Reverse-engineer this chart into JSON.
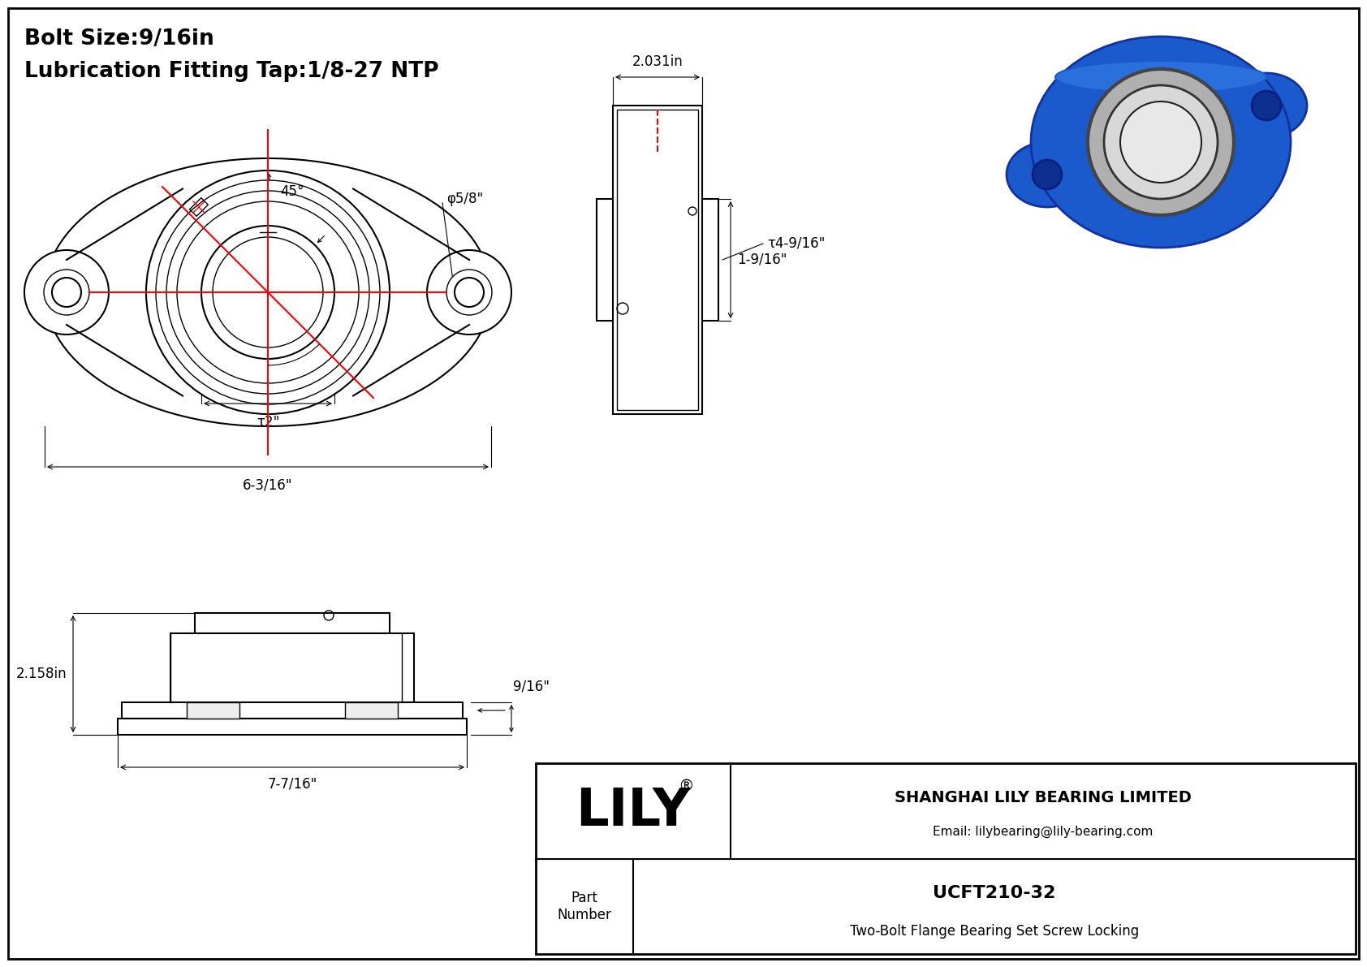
{
  "bg_color": "#ffffff",
  "line_color": "#000000",
  "red_color": "#ff0000",
  "gray_color": "#888888",
  "title_line1": "Bolt Size:9/16in",
  "title_line2": "Lubrication Fitting Tap:1/8-27 NTP",
  "header_company": "SHANGHAI LILY BEARING LIMITED",
  "header_email": "Email: lilybearing@lily-bearing.com",
  "part_label": "Part\nNumber",
  "part_number": "UCFT210-32",
  "part_desc": "Two-Bolt Flange Bearing Set Screw Locking",
  "dim_bolt_hole": "φ5/8\"",
  "dim_bore": "τ2\"",
  "dim_width": "6-3/16\"",
  "dim_od": "τ4-9/16\"",
  "dim_length": "2.031in",
  "dim_height": "1-9/16\"",
  "dim_45": "45°",
  "dim_side_height": "2.158in",
  "dim_side_width": "7-7/16\"",
  "dim_flange": "9/16\"",
  "lily_logo": "LILY",
  "lily_reg": "®"
}
